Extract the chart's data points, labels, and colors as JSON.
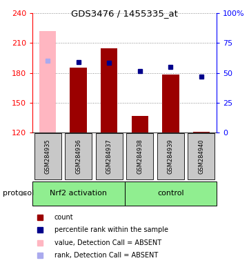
{
  "title": "GDS3476 / 1455335_at",
  "samples": [
    "GSM284935",
    "GSM284936",
    "GSM284937",
    "GSM284938",
    "GSM284939",
    "GSM284940"
  ],
  "ylim_left": [
    120,
    240
  ],
  "ylim_right": [
    0,
    100
  ],
  "yticks_left": [
    120,
    150,
    180,
    210,
    240
  ],
  "yticks_right": [
    0,
    25,
    50,
    75,
    100
  ],
  "ytick_labels_right": [
    "0",
    "25",
    "50",
    "75",
    "100%"
  ],
  "bar_base": 120,
  "red_bar_absent": [
    true,
    false,
    false,
    false,
    false,
    false
  ],
  "red_bar_heights": [
    222,
    185,
    205,
    137,
    178,
    121
  ],
  "color_red_normal": "#9B0000",
  "color_red_absent": "#FFB6C1",
  "blue_sq_absent": [
    true,
    false,
    false,
    false,
    false,
    false
  ],
  "blue_sq_y": [
    192,
    191,
    190,
    182,
    186,
    176
  ],
  "color_blue_normal": "#00008B",
  "color_blue_absent": "#AAAAEE",
  "group_boundaries": [
    [
      0,
      2,
      "Nrf2 activation"
    ],
    [
      3,
      5,
      "control"
    ]
  ],
  "group_color": "#90EE90",
  "legend_items": [
    {
      "color": "#9B0000",
      "label": "count"
    },
    {
      "color": "#00008B",
      "label": "percentile rank within the sample"
    },
    {
      "color": "#FFB6C1",
      "label": "value, Detection Call = ABSENT"
    },
    {
      "color": "#AAAAEE",
      "label": "rank, Detection Call = ABSENT"
    }
  ],
  "sample_box_color": "#C8C8C8",
  "grid_color": "#888888",
  "background_color": "#ffffff"
}
